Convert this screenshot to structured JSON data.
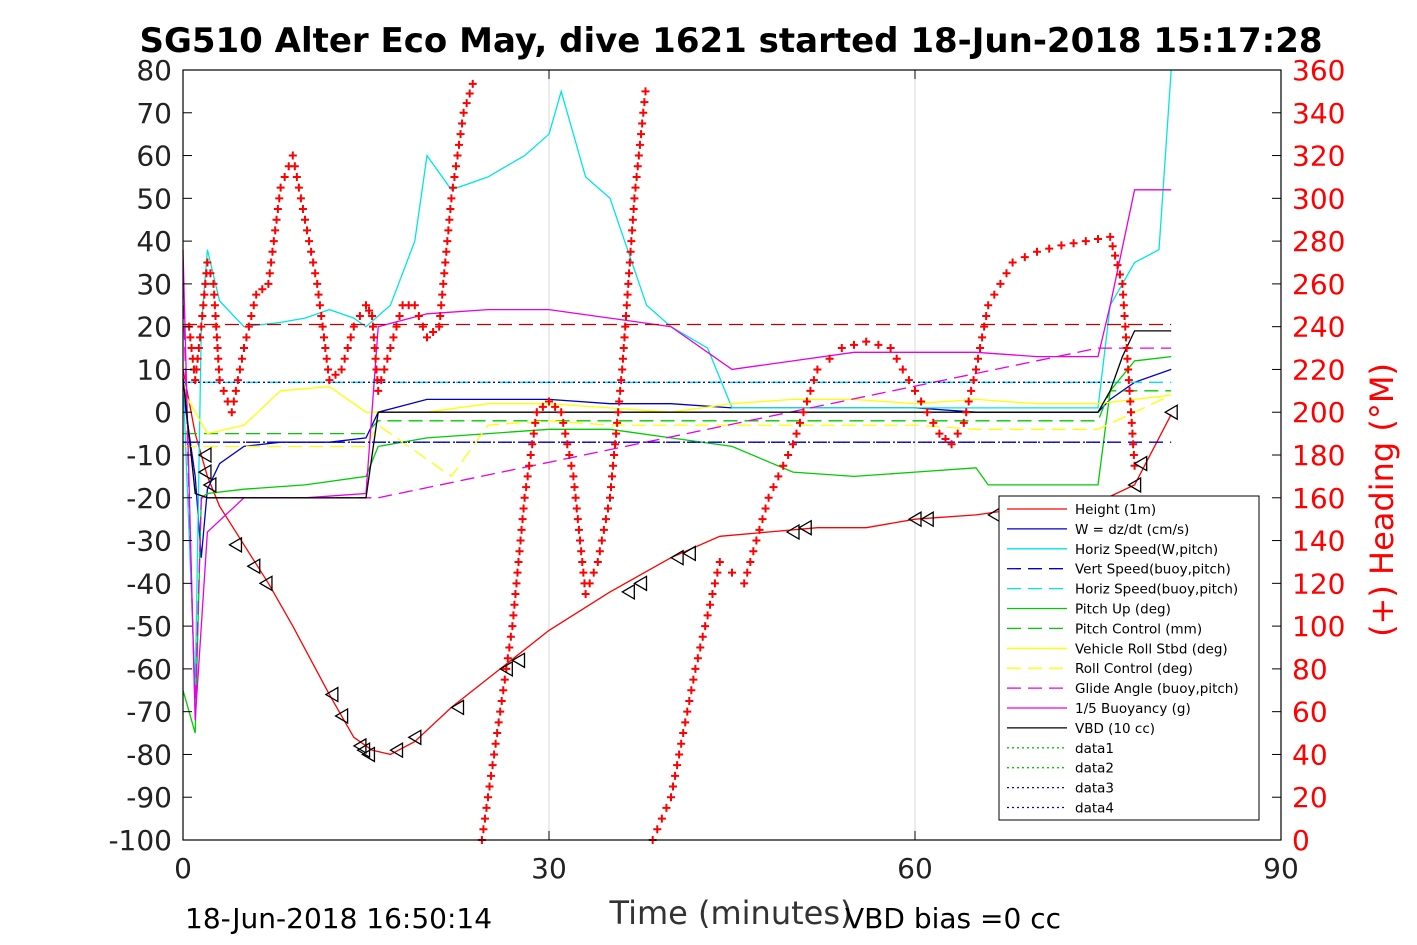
{
  "chart_data": {
    "type": "line",
    "title": "SG510 Alter Eco May, dive 1621 started 18-Jun-2018 15:17:28",
    "xlabel": "Time (minutes)",
    "ylabel_right": "(+) Heading (°M)",
    "footer_left": "18-Jun-2018 16:50:14",
    "footer_right": "VBD bias =0 cc",
    "xlim": [
      0,
      90
    ],
    "ylim_left": [
      -100,
      80
    ],
    "ylim_right": [
      0,
      360
    ],
    "x_ticks": [
      0,
      30,
      60,
      90
    ],
    "y_left_ticks": [
      -100,
      -90,
      -80,
      -70,
      -60,
      -50,
      -40,
      -30,
      -20,
      -10,
      0,
      10,
      20,
      30,
      40,
      50,
      60,
      70,
      80
    ],
    "y_right_ticks": [
      0,
      20,
      40,
      60,
      80,
      100,
      120,
      140,
      160,
      180,
      200,
      220,
      240,
      260,
      280,
      300,
      320,
      340,
      360
    ],
    "grid": "vertical lines at x ticks",
    "legend_position": "bottom-right",
    "colors": {
      "red": "#ff0000",
      "blue": "#0000cc",
      "cyan": "#00e5e5",
      "green": "#00cc00",
      "yellow": "#ffff00",
      "magenta": "#e600e6",
      "black": "#000000",
      "heading_axis": "#ff0000"
    },
    "legend": [
      {
        "name": "Height (1m)",
        "color": "#ff0000",
        "style": "solid"
      },
      {
        "name": "W = dz/dt (cm/s)",
        "color": "#0000cc",
        "style": "solid"
      },
      {
        "name": "Horiz Speed(W,pitch)",
        "color": "#00e5e5",
        "style": "solid"
      },
      {
        "name": "Vert Speed(buoy,pitch)",
        "color": "#0000cc",
        "style": "dashed"
      },
      {
        "name": "Horiz Speed(buoy,pitch)",
        "color": "#00e5e5",
        "style": "dashed"
      },
      {
        "name": "Pitch Up (deg)",
        "color": "#00cc00",
        "style": "solid"
      },
      {
        "name": "Pitch Control (mm)",
        "color": "#00cc00",
        "style": "dashed"
      },
      {
        "name": "Vehicle Roll Stbd (deg)",
        "color": "#ffff00",
        "style": "solid"
      },
      {
        "name": "Roll Control (deg)",
        "color": "#ffff00",
        "style": "dashed"
      },
      {
        "name": "Glide Angle (buoy,pitch)",
        "color": "#e600e6",
        "style": "dashed"
      },
      {
        "name": "1/5 Buoyancy (g)",
        "color": "#e600e6",
        "style": "solid"
      },
      {
        "name": "VBD (10 cc)",
        "color": "#000000",
        "style": "solid"
      },
      {
        "name": "data1",
        "color": "#00cc00",
        "style": "dotted"
      },
      {
        "name": "data2",
        "color": "#00cc00",
        "style": "dotted"
      },
      {
        "name": "data3",
        "color": "#0000cc",
        "style": "dotted"
      },
      {
        "name": "data4",
        "color": "#0000cc",
        "style": "dotted"
      }
    ],
    "series": [
      {
        "name": "Height (1m)",
        "color": "#ff0000",
        "style": "solid",
        "x": [
          0,
          1,
          2,
          3,
          5,
          7,
          9,
          12,
          14,
          15.5,
          17,
          19,
          22,
          26,
          30,
          35,
          40,
          44,
          48,
          52,
          56,
          60,
          65,
          70,
          75,
          78,
          81
        ],
        "y": [
          10,
          -5,
          -15,
          -22,
          -31,
          -40,
          -50,
          -66,
          -76,
          -79,
          -80,
          -77,
          -69,
          -60,
          -51,
          -42,
          -34,
          -29,
          -28,
          -27,
          -27,
          -25,
          -24,
          -22,
          -21,
          -17,
          -0.5
        ]
      },
      {
        "name": "W = dz/dt (cm/s)",
        "color": "#0000cc",
        "style": "solid",
        "x": [
          0,
          1,
          1.5,
          2,
          3,
          5,
          8,
          12,
          15,
          16,
          20,
          25,
          30,
          35,
          40,
          45,
          50,
          55,
          60,
          65,
          70,
          75,
          76,
          78,
          81
        ],
        "y": [
          5,
          -15,
          -34,
          -18,
          -12,
          -8,
          -7,
          -7,
          -6,
          0,
          3,
          3,
          3,
          2,
          2,
          1,
          1,
          1,
          1,
          0,
          0,
          0,
          3,
          7,
          10
        ]
      },
      {
        "name": "Horiz Speed(W,pitch)",
        "color": "#00e5e5",
        "style": "solid",
        "x": [
          0,
          1,
          1.5,
          2,
          3,
          5,
          8,
          10,
          12,
          14,
          15,
          17,
          19,
          20,
          22,
          25,
          28,
          30,
          31,
          33,
          35,
          38,
          40,
          43,
          45,
          50,
          55,
          60,
          65,
          70,
          75,
          76,
          78,
          80,
          81
        ],
        "y": [
          8,
          -65,
          20,
          38,
          26,
          20,
          21,
          22,
          24,
          22,
          20,
          25,
          40,
          60,
          52,
          55,
          60,
          65,
          75,
          55,
          50,
          25,
          20,
          15,
          1,
          1,
          1,
          1,
          1,
          1,
          1,
          25,
          35,
          38,
          80
        ]
      },
      {
        "name": "Vert Speed(buoy,pitch)",
        "color": "#0000cc",
        "style": "dashed",
        "x": [
          0,
          15,
          16,
          75,
          76,
          81
        ],
        "y": [
          -7,
          -7,
          -7,
          -7,
          -7,
          -7
        ]
      },
      {
        "name": "Horiz Speed(buoy,pitch)",
        "color": "#00e5e5",
        "style": "dashed",
        "x": [
          0,
          15,
          16,
          75,
          76,
          81
        ],
        "y": [
          7,
          7,
          7,
          7,
          7,
          7
        ]
      },
      {
        "name": "Pitch Up (deg)",
        "color": "#00cc00",
        "style": "solid",
        "x": [
          0,
          1,
          1.5,
          2,
          5,
          10,
          15,
          16,
          20,
          25,
          30,
          35,
          40,
          45,
          50,
          55,
          60,
          65,
          66,
          70,
          75,
          76,
          78,
          81
        ],
        "y": [
          -65,
          -75,
          -20,
          -19,
          -18,
          -17,
          -15,
          -8,
          -6,
          -5,
          -4,
          -4,
          -6,
          -8,
          -14,
          -15,
          -14,
          -13,
          -17,
          -17,
          -17,
          5,
          12,
          13
        ]
      },
      {
        "name": "Pitch Control (mm)",
        "color": "#00cc00",
        "style": "dashed",
        "x": [
          0,
          15,
          16,
          75,
          76,
          81
        ],
        "y": [
          -5,
          -5,
          -2,
          -2,
          5,
          5
        ]
      },
      {
        "name": "Vehicle Roll Stbd (deg)",
        "color": "#ffff00",
        "style": "solid",
        "x": [
          0,
          2,
          5,
          8,
          12,
          15,
          20,
          25,
          30,
          35,
          40,
          45,
          50,
          55,
          60,
          65,
          70,
          75,
          78,
          81
        ],
        "y": [
          5,
          -5,
          -3,
          5,
          6,
          0,
          0,
          2,
          2,
          1,
          0,
          2,
          3,
          3,
          2,
          3,
          2,
          2,
          3,
          4
        ]
      },
      {
        "name": "Roll Control (deg)",
        "color": "#ffff00",
        "style": "dashed",
        "x": [
          0,
          15,
          16,
          22,
          25,
          30,
          35,
          40,
          45,
          50,
          55,
          60,
          65,
          70,
          75,
          81
        ],
        "y": [
          -8,
          -8,
          -3,
          -15,
          -3,
          -2,
          -3,
          -3,
          -3,
          -3,
          -3,
          -3,
          -4,
          -4,
          -4,
          4
        ]
      },
      {
        "name": "Glide Angle (buoy,pitch)",
        "color": "#e600e6",
        "style": "dashed",
        "x": [
          0,
          1,
          1.5,
          2,
          15,
          16,
          75,
          76,
          81
        ],
        "y": [
          30,
          -70,
          -20,
          -20,
          -20,
          -20,
          15,
          15,
          15
        ]
      },
      {
        "name": "1/5 Buoyancy (g)",
        "color": "#e600e6",
        "style": "solid",
        "x": [
          0,
          1,
          2,
          5,
          10,
          15,
          16,
          20,
          25,
          30,
          35,
          40,
          45,
          50,
          55,
          60,
          65,
          70,
          75,
          76,
          78,
          81
        ],
        "y": [
          38,
          -72,
          -28,
          -20,
          -20,
          -19,
          20,
          23,
          24,
          24,
          22,
          20,
          10,
          12,
          14,
          14,
          14,
          13,
          13,
          25,
          52,
          52
        ]
      },
      {
        "name": "VBD (10 cc)",
        "color": "#000000",
        "style": "solid",
        "x": [
          0,
          1,
          2,
          15,
          16,
          75,
          76,
          77,
          78,
          81
        ],
        "y": [
          8,
          -19,
          -20,
          -20,
          0,
          0,
          5,
          13,
          19,
          19
        ]
      },
      {
        "name": "data3",
        "color": "#0000cc",
        "style": "dotted",
        "x": [
          0,
          76
        ],
        "y": [
          7,
          7
        ]
      },
      {
        "name": "data4",
        "color": "#0000cc",
        "style": "dotted",
        "x": [
          0,
          76
        ],
        "y": [
          -7,
          -7
        ]
      },
      {
        "name": "Heading reference",
        "color": "#c00000",
        "style": "dashed",
        "x": [
          0,
          81
        ],
        "y": [
          20.5,
          20.5
        ]
      }
    ],
    "heading": {
      "name": "(+) Heading (°M)",
      "color": "#ff0000",
      "marker": "+",
      "axis": "right",
      "x": [
        0.5,
        1,
        1.5,
        2,
        2.5,
        3,
        4,
        5,
        6,
        7,
        8,
        9,
        10,
        11,
        12,
        13,
        14,
        15,
        15.5,
        16,
        17,
        18,
        19,
        20,
        21,
        22,
        23,
        24,
        24.5,
        25,
        26,
        27,
        28,
        29,
        30,
        31,
        32,
        33,
        34,
        35,
        36,
        37,
        38,
        38.5,
        40,
        42,
        44,
        46,
        48,
        50,
        52,
        54,
        56,
        58,
        60,
        62,
        63,
        64,
        65,
        66,
        68,
        70,
        72,
        74,
        76,
        77,
        78
      ],
      "y": [
        240,
        215,
        240,
        270,
        260,
        215,
        200,
        230,
        255,
        260,
        305,
        320,
        290,
        260,
        215,
        220,
        240,
        250,
        245,
        210,
        230,
        250,
        250,
        235,
        240,
        300,
        340,
        358,
        0,
        20,
        60,
        100,
        160,
        200,
        205,
        200,
        170,
        115,
        130,
        160,
        220,
        300,
        355,
        0,
        20,
        80,
        130,
        120,
        160,
        185,
        220,
        230,
        233,
        230,
        210,
        190,
        185,
        195,
        220,
        250,
        270,
        275,
        278,
        280,
        282,
        260,
        175
      ]
    },
    "markers": {
      "name": "Height triangles",
      "color": "#000000",
      "marker": "triangle-left",
      "x": [
        1.8,
        1.8,
        2.2,
        4.3,
        5.8,
        6.8,
        12.2,
        13,
        14.5,
        14.8,
        15.2,
        17.5,
        19,
        22.5,
        26.5,
        27.5,
        36.5,
        37.5,
        40.5,
        41.5,
        50,
        51,
        60,
        61,
        66.5,
        78,
        78.5,
        81
      ],
      "y": [
        -10,
        -14,
        -17,
        -31,
        -36,
        -40,
        -66,
        -71,
        -78,
        -79,
        -80,
        -79,
        -76,
        -69,
        -60,
        -58,
        -42,
        -40,
        -34,
        -33,
        -28,
        -27,
        -25,
        -25,
        -24,
        -17,
        -12,
        0
      ]
    }
  }
}
